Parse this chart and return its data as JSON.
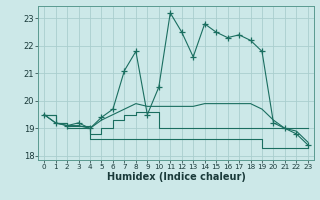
{
  "xlabel": "Humidex (Indice chaleur)",
  "bg_color": "#cce8e8",
  "grid_color": "#aacece",
  "line_color": "#1a6e60",
  "xlim": [
    -0.5,
    23.5
  ],
  "ylim": [
    17.85,
    23.45
  ],
  "yticks": [
    18,
    19,
    20,
    21,
    22,
    23
  ],
  "xticks": [
    0,
    1,
    2,
    3,
    4,
    5,
    6,
    7,
    8,
    9,
    10,
    11,
    12,
    13,
    14,
    15,
    16,
    17,
    18,
    19,
    20,
    21,
    22,
    23
  ],
  "series_step1": [
    19.5,
    19.2,
    19.0,
    19.0,
    18.6,
    18.6,
    18.6,
    18.6,
    18.6,
    18.6,
    18.6,
    18.6,
    18.6,
    18.6,
    18.6,
    18.6,
    18.6,
    18.6,
    18.6,
    18.3,
    18.3,
    18.3,
    18.3,
    18.3
  ],
  "series_step2": [
    19.5,
    19.2,
    19.1,
    19.1,
    18.8,
    19.0,
    19.3,
    19.5,
    19.6,
    19.6,
    19.0,
    19.0,
    19.0,
    19.0,
    19.0,
    19.0,
    19.0,
    19.0,
    19.0,
    19.0,
    19.0,
    19.0,
    19.0,
    19.0
  ],
  "series_smooth": [
    19.5,
    19.2,
    19.1,
    19.1,
    19.0,
    19.3,
    19.5,
    19.7,
    19.9,
    19.8,
    19.8,
    19.8,
    19.8,
    19.8,
    19.9,
    19.9,
    19.9,
    19.9,
    19.9,
    19.7,
    19.3,
    19.0,
    18.9,
    18.5
  ],
  "series_main": [
    19.5,
    19.2,
    19.1,
    19.2,
    19.0,
    19.4,
    19.7,
    21.1,
    21.8,
    19.5,
    20.5,
    23.2,
    22.5,
    21.6,
    22.8,
    22.5,
    22.3,
    22.4,
    22.2,
    21.8,
    19.2,
    19.0,
    18.8,
    18.4
  ]
}
